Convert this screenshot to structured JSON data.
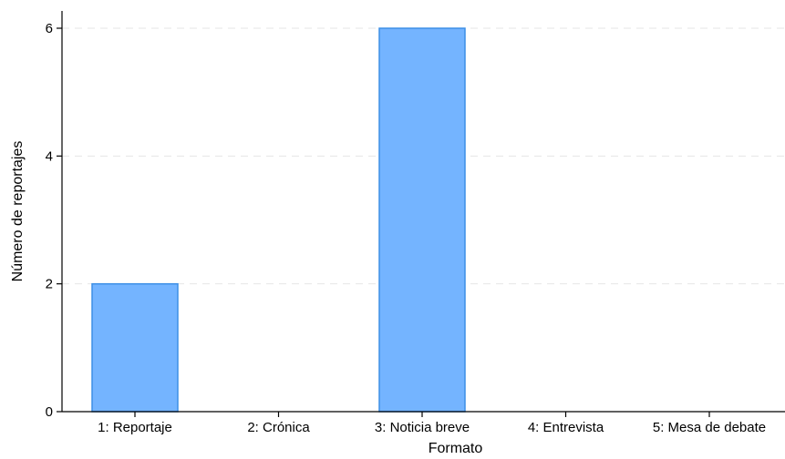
{
  "chart_data": {
    "type": "bar",
    "title": "",
    "xlabel": "Formato",
    "ylabel": "Número de reportajes",
    "categories": [
      "1: Reportaje",
      "2: Crónica",
      "3: Noticia breve",
      "4: Entrevista",
      "5: Mesa de debate"
    ],
    "values": [
      2,
      0,
      6,
      0,
      0
    ],
    "ylim": [
      0,
      6
    ],
    "yticks": [
      0,
      2,
      4,
      6
    ],
    "grid": true,
    "legend": "none",
    "colors": {
      "bar_fill": "#74b4ff",
      "bar_stroke": "#3d8fe6",
      "grid": "#e6e6e6",
      "axis": "#000000"
    }
  }
}
